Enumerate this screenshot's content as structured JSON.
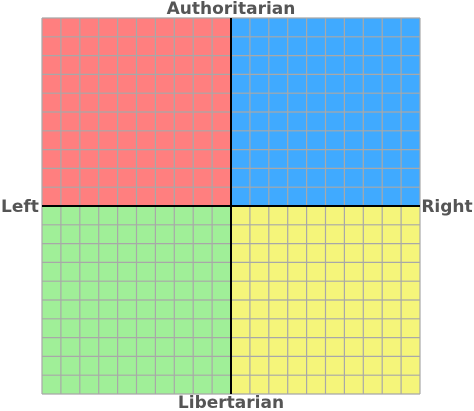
{
  "labels": {
    "top": "Authoritarian",
    "bottom": "Libertarian",
    "left": "Left",
    "right": "Right"
  }
}
